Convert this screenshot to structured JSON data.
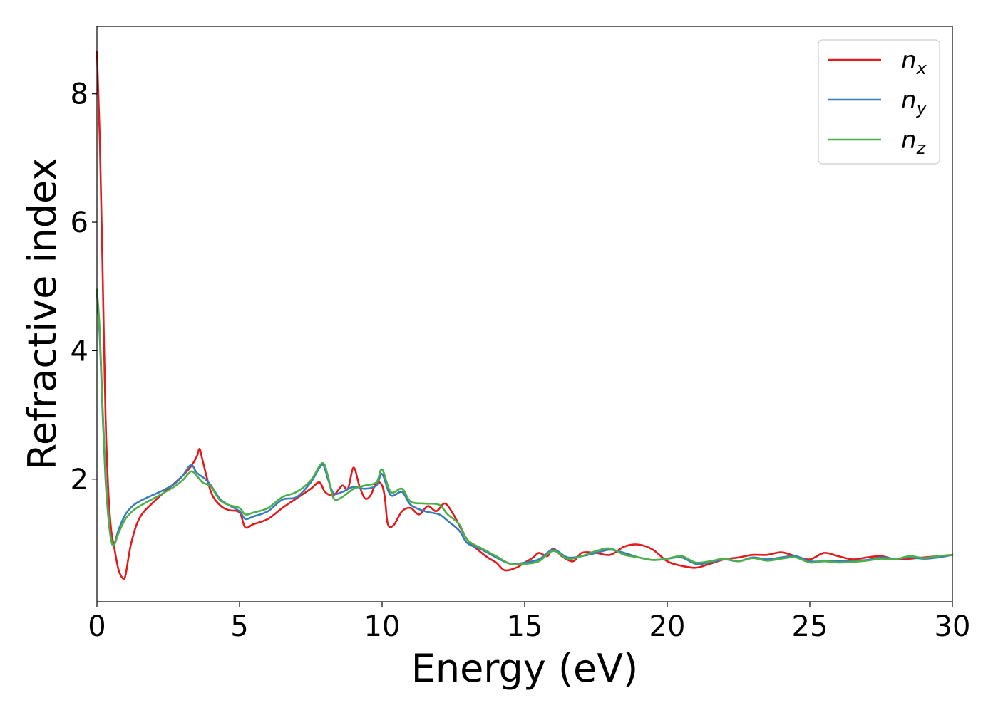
{
  "chart_data": {
    "type": "line",
    "title": "",
    "xlabel": "Energy (eV)",
    "ylabel": "Refractive index",
    "xlim": [
      0,
      30
    ],
    "ylim": [
      0.09,
      9.05
    ],
    "xticks": [
      0,
      5,
      10,
      15,
      20,
      25,
      30
    ],
    "yticks": [
      2,
      4,
      6,
      8
    ],
    "grid": false,
    "legend_position": "top-right",
    "series": [
      {
        "name_base": "n",
        "name_sub": "x",
        "color": "#e41a1c",
        "points": [
          [
            0,
            8.66
          ],
          [
            0.1,
            7.3
          ],
          [
            0.2,
            5.2
          ],
          [
            0.3,
            3.0
          ],
          [
            0.4,
            1.8
          ],
          [
            0.5,
            1.2
          ],
          [
            0.6,
            0.95
          ],
          [
            0.75,
            0.6
          ],
          [
            0.9,
            0.46
          ],
          [
            1.0,
            0.5
          ],
          [
            1.2,
            1.0
          ],
          [
            1.5,
            1.4
          ],
          [
            2.0,
            1.65
          ],
          [
            2.5,
            1.85
          ],
          [
            3.0,
            2.05
          ],
          [
            3.3,
            2.2
          ],
          [
            3.5,
            2.35
          ],
          [
            3.6,
            2.47
          ],
          [
            3.7,
            2.3
          ],
          [
            4.0,
            1.8
          ],
          [
            4.3,
            1.6
          ],
          [
            4.6,
            1.52
          ],
          [
            5.0,
            1.48
          ],
          [
            5.2,
            1.25
          ],
          [
            5.5,
            1.3
          ],
          [
            6.0,
            1.38
          ],
          [
            6.5,
            1.55
          ],
          [
            7.0,
            1.7
          ],
          [
            7.5,
            1.85
          ],
          [
            7.8,
            1.95
          ],
          [
            8.0,
            1.8
          ],
          [
            8.3,
            1.75
          ],
          [
            8.6,
            1.9
          ],
          [
            8.8,
            1.85
          ],
          [
            9.0,
            2.18
          ],
          [
            9.2,
            1.9
          ],
          [
            9.4,
            1.7
          ],
          [
            9.6,
            1.75
          ],
          [
            9.8,
            1.95
          ],
          [
            10.0,
            1.9
          ],
          [
            10.1,
            1.7
          ],
          [
            10.2,
            1.3
          ],
          [
            10.4,
            1.28
          ],
          [
            10.7,
            1.5
          ],
          [
            11.0,
            1.55
          ],
          [
            11.3,
            1.45
          ],
          [
            11.6,
            1.58
          ],
          [
            11.9,
            1.5
          ],
          [
            12.2,
            1.62
          ],
          [
            12.5,
            1.45
          ],
          [
            12.8,
            1.2
          ],
          [
            13.0,
            1.05
          ],
          [
            13.3,
            0.92
          ],
          [
            13.7,
            0.78
          ],
          [
            14.0,
            0.7
          ],
          [
            14.3,
            0.58
          ],
          [
            14.7,
            0.62
          ],
          [
            15.0,
            0.7
          ],
          [
            15.3,
            0.78
          ],
          [
            15.5,
            0.85
          ],
          [
            15.8,
            0.8
          ],
          [
            16.0,
            0.92
          ],
          [
            16.3,
            0.8
          ],
          [
            16.7,
            0.72
          ],
          [
            17.0,
            0.85
          ],
          [
            17.5,
            0.85
          ],
          [
            18.0,
            0.82
          ],
          [
            18.5,
            0.95
          ],
          [
            19.0,
            0.98
          ],
          [
            19.5,
            0.9
          ],
          [
            20.0,
            0.72
          ],
          [
            20.5,
            0.65
          ],
          [
            21.0,
            0.62
          ],
          [
            21.5,
            0.68
          ],
          [
            22.0,
            0.75
          ],
          [
            22.5,
            0.78
          ],
          [
            23.0,
            0.82
          ],
          [
            23.5,
            0.82
          ],
          [
            24.0,
            0.86
          ],
          [
            24.5,
            0.8
          ],
          [
            25.0,
            0.75
          ],
          [
            25.5,
            0.85
          ],
          [
            26.0,
            0.8
          ],
          [
            26.5,
            0.75
          ],
          [
            27.0,
            0.78
          ],
          [
            27.5,
            0.8
          ],
          [
            28.0,
            0.75
          ],
          [
            28.5,
            0.76
          ],
          [
            29.0,
            0.78
          ],
          [
            29.5,
            0.8
          ],
          [
            30.0,
            0.82
          ]
        ]
      },
      {
        "name_base": "n",
        "name_sub": "y",
        "color": "#377eb8",
        "points": [
          [
            0,
            4.9
          ],
          [
            0.1,
            4.2
          ],
          [
            0.2,
            3.0
          ],
          [
            0.3,
            2.0
          ],
          [
            0.4,
            1.4
          ],
          [
            0.5,
            1.05
          ],
          [
            0.6,
            0.98
          ],
          [
            0.75,
            1.2
          ],
          [
            1.0,
            1.45
          ],
          [
            1.3,
            1.6
          ],
          [
            1.7,
            1.7
          ],
          [
            2.2,
            1.8
          ],
          [
            2.7,
            1.92
          ],
          [
            3.0,
            2.05
          ],
          [
            3.3,
            2.22
          ],
          [
            3.5,
            2.1
          ],
          [
            3.8,
            2.0
          ],
          [
            4.0,
            1.9
          ],
          [
            4.3,
            1.7
          ],
          [
            4.6,
            1.6
          ],
          [
            5.0,
            1.5
          ],
          [
            5.2,
            1.38
          ],
          [
            5.5,
            1.42
          ],
          [
            6.0,
            1.5
          ],
          [
            6.5,
            1.68
          ],
          [
            7.0,
            1.72
          ],
          [
            7.5,
            1.95
          ],
          [
            7.9,
            2.22
          ],
          [
            8.1,
            2.0
          ],
          [
            8.3,
            1.78
          ],
          [
            8.6,
            1.8
          ],
          [
            9.0,
            1.88
          ],
          [
            9.4,
            1.85
          ],
          [
            9.8,
            1.9
          ],
          [
            10.0,
            2.08
          ],
          [
            10.3,
            1.75
          ],
          [
            10.7,
            1.8
          ],
          [
            11.0,
            1.6
          ],
          [
            11.5,
            1.5
          ],
          [
            12.0,
            1.45
          ],
          [
            12.3,
            1.35
          ],
          [
            12.7,
            1.2
          ],
          [
            13.0,
            1.0
          ],
          [
            13.5,
            0.9
          ],
          [
            14.0,
            0.78
          ],
          [
            14.5,
            0.68
          ],
          [
            15.0,
            0.7
          ],
          [
            15.5,
            0.75
          ],
          [
            16.0,
            0.9
          ],
          [
            16.5,
            0.78
          ],
          [
            17.0,
            0.8
          ],
          [
            17.5,
            0.85
          ],
          [
            18.0,
            0.9
          ],
          [
            18.5,
            0.85
          ],
          [
            19.0,
            0.78
          ],
          [
            19.5,
            0.74
          ],
          [
            20.0,
            0.76
          ],
          [
            20.5,
            0.78
          ],
          [
            21.0,
            0.68
          ],
          [
            21.5,
            0.7
          ],
          [
            22.0,
            0.75
          ],
          [
            22.5,
            0.72
          ],
          [
            23.0,
            0.78
          ],
          [
            23.5,
            0.75
          ],
          [
            24.0,
            0.78
          ],
          [
            24.5,
            0.8
          ],
          [
            25.0,
            0.72
          ],
          [
            25.5,
            0.72
          ],
          [
            26.0,
            0.72
          ],
          [
            26.5,
            0.73
          ],
          [
            27.0,
            0.74
          ],
          [
            27.5,
            0.78
          ],
          [
            28.0,
            0.76
          ],
          [
            28.5,
            0.78
          ],
          [
            29.0,
            0.76
          ],
          [
            29.5,
            0.78
          ],
          [
            30.0,
            0.82
          ]
        ]
      },
      {
        "name_base": "n",
        "name_sub": "z",
        "color": "#4daf4a",
        "points": [
          [
            0,
            4.95
          ],
          [
            0.1,
            4.3
          ],
          [
            0.2,
            3.1
          ],
          [
            0.3,
            2.1
          ],
          [
            0.4,
            1.45
          ],
          [
            0.5,
            1.05
          ],
          [
            0.6,
            0.97
          ],
          [
            0.75,
            1.15
          ],
          [
            1.0,
            1.38
          ],
          [
            1.3,
            1.52
          ],
          [
            1.7,
            1.63
          ],
          [
            2.2,
            1.75
          ],
          [
            2.7,
            1.88
          ],
          [
            3.0,
            1.98
          ],
          [
            3.3,
            2.12
          ],
          [
            3.5,
            2.05
          ],
          [
            3.7,
            1.95
          ],
          [
            4.0,
            1.88
          ],
          [
            4.3,
            1.68
          ],
          [
            4.6,
            1.6
          ],
          [
            5.0,
            1.55
          ],
          [
            5.2,
            1.45
          ],
          [
            5.5,
            1.48
          ],
          [
            6.0,
            1.55
          ],
          [
            6.5,
            1.72
          ],
          [
            7.0,
            1.8
          ],
          [
            7.5,
            1.98
          ],
          [
            7.9,
            2.25
          ],
          [
            8.1,
            2.05
          ],
          [
            8.3,
            1.7
          ],
          [
            8.6,
            1.72
          ],
          [
            9.0,
            1.85
          ],
          [
            9.4,
            1.9
          ],
          [
            9.8,
            1.95
          ],
          [
            10.0,
            2.15
          ],
          [
            10.3,
            1.8
          ],
          [
            10.7,
            1.85
          ],
          [
            11.0,
            1.65
          ],
          [
            11.5,
            1.62
          ],
          [
            12.0,
            1.6
          ],
          [
            12.3,
            1.45
          ],
          [
            12.7,
            1.3
          ],
          [
            13.0,
            1.05
          ],
          [
            13.5,
            0.92
          ],
          [
            14.0,
            0.8
          ],
          [
            14.5,
            0.68
          ],
          [
            15.0,
            0.68
          ],
          [
            15.5,
            0.72
          ],
          [
            16.0,
            0.88
          ],
          [
            16.5,
            0.76
          ],
          [
            17.0,
            0.8
          ],
          [
            17.5,
            0.88
          ],
          [
            18.0,
            0.92
          ],
          [
            18.5,
            0.82
          ],
          [
            19.0,
            0.78
          ],
          [
            19.5,
            0.74
          ],
          [
            20.0,
            0.76
          ],
          [
            20.5,
            0.8
          ],
          [
            21.0,
            0.7
          ],
          [
            21.5,
            0.72
          ],
          [
            22.0,
            0.76
          ],
          [
            22.5,
            0.72
          ],
          [
            23.0,
            0.77
          ],
          [
            23.5,
            0.73
          ],
          [
            24.0,
            0.76
          ],
          [
            24.5,
            0.78
          ],
          [
            25.0,
            0.7
          ],
          [
            25.5,
            0.72
          ],
          [
            26.0,
            0.7
          ],
          [
            26.5,
            0.71
          ],
          [
            27.0,
            0.73
          ],
          [
            27.5,
            0.76
          ],
          [
            28.0,
            0.75
          ],
          [
            28.5,
            0.8
          ],
          [
            29.0,
            0.77
          ],
          [
            29.5,
            0.8
          ],
          [
            30.0,
            0.82
          ]
        ]
      }
    ]
  }
}
